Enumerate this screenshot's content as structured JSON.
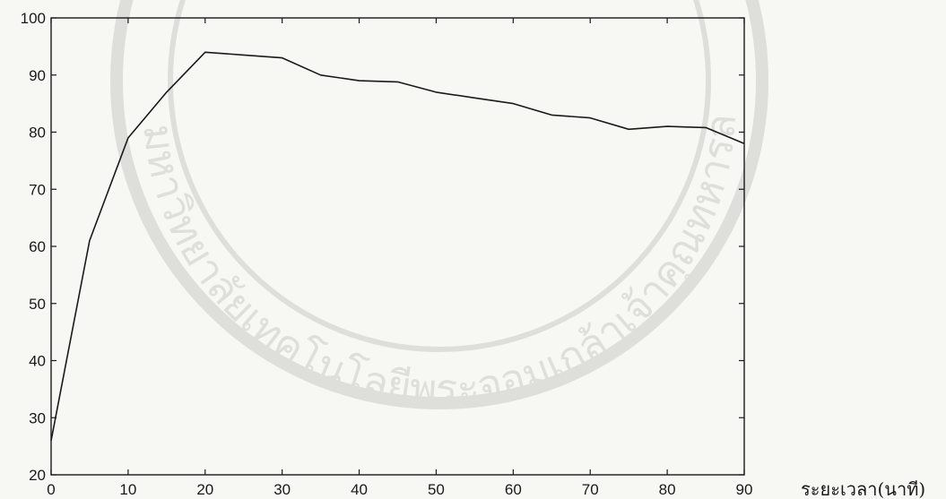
{
  "chart_data": {
    "type": "line",
    "title": "",
    "xlabel": "ระยะเวลา(นาที)",
    "ylabel": "",
    "xlim": [
      0,
      90
    ],
    "ylim": [
      20,
      100
    ],
    "xticks": [
      0,
      10,
      20,
      30,
      40,
      50,
      60,
      70,
      80,
      90
    ],
    "yticks": [
      20,
      30,
      40,
      50,
      60,
      70,
      80,
      90,
      100
    ],
    "grid": false,
    "series": [
      {
        "color": "#1a1a1a",
        "x": [
          0,
          5,
          10,
          15,
          20,
          25,
          30,
          35,
          40,
          45,
          50,
          55,
          60,
          65,
          70,
          75,
          80,
          85,
          90
        ],
        "y": [
          26,
          61,
          79,
          87,
          94,
          93.5,
          93,
          90,
          89,
          88.8,
          87,
          86,
          85,
          83,
          82.5,
          80.5,
          81,
          80.8,
          78
        ]
      }
    ]
  },
  "watermark": {
    "text": "มหาวิทยาลัยเทคโนโลยีพระจอมเกล้าเจ้าคุณทหารลาดกระบัง"
  }
}
